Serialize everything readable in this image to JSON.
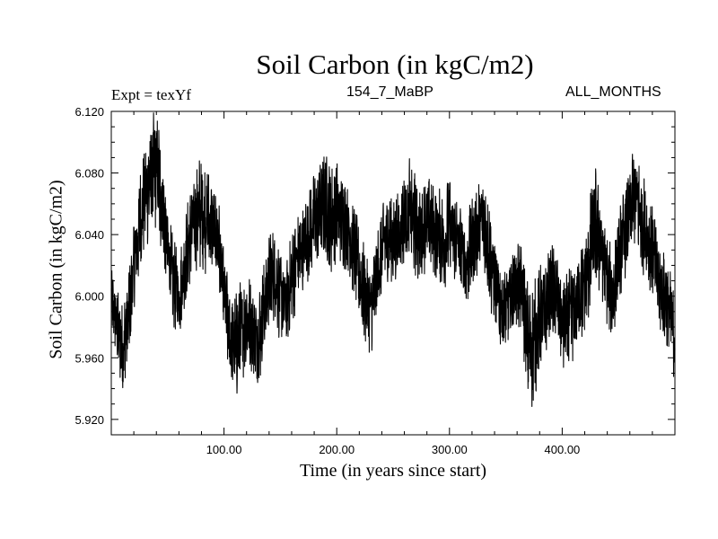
{
  "chart_data": {
    "type": "line",
    "title": "Soil Carbon (in kgC/m2)",
    "subtitle_left": "Expt = texYf",
    "subtitle_center": "154_7_MaBP",
    "subtitle_right": "ALL_MONTHS",
    "xlabel": "Time (in years since start)",
    "ylabel": "Soil Carbon (in kgC/m2)",
    "xlim": [
      0,
      500
    ],
    "ylim": [
      5.91,
      6.12
    ],
    "x_ticks": [
      100,
      200,
      300,
      400
    ],
    "x_tick_labels": [
      "100.00",
      "200.00",
      "300.00",
      "400.00"
    ],
    "y_ticks": [
      5.92,
      5.96,
      6.0,
      6.04,
      6.08,
      6.12
    ],
    "y_tick_labels": [
      "5.920",
      "5.960",
      "6.000",
      "6.040",
      "6.080",
      "6.120"
    ],
    "grid": false,
    "series": [
      {
        "color": "#000000",
        "x": [
          0,
          5,
          10,
          15,
          20,
          25,
          30,
          35,
          40,
          45,
          50,
          55,
          60,
          65,
          70,
          75,
          80,
          85,
          90,
          95,
          100,
          105,
          110,
          115,
          120,
          125,
          130,
          135,
          140,
          145,
          150,
          155,
          160,
          165,
          170,
          175,
          180,
          185,
          190,
          195,
          200,
          205,
          210,
          215,
          220,
          225,
          230,
          235,
          240,
          245,
          250,
          255,
          260,
          265,
          270,
          275,
          280,
          285,
          290,
          295,
          300,
          305,
          310,
          315,
          320,
          325,
          330,
          335,
          340,
          345,
          350,
          355,
          360,
          365,
          370,
          375,
          380,
          385,
          390,
          395,
          400,
          405,
          410,
          415,
          420,
          425,
          430,
          435,
          440,
          445,
          450,
          455,
          460,
          465,
          470,
          475,
          480,
          485,
          490,
          495,
          500
        ],
        "y": [
          6.0,
          5.98,
          5.965,
          5.985,
          6.02,
          6.045,
          6.065,
          6.075,
          6.085,
          6.06,
          6.03,
          6.01,
          6.0,
          6.02,
          6.04,
          6.05,
          6.055,
          6.05,
          6.045,
          6.035,
          6.0,
          5.975,
          5.965,
          5.975,
          5.985,
          5.98,
          5.97,
          5.99,
          6.01,
          6.015,
          6.0,
          5.995,
          6.01,
          6.025,
          6.03,
          6.04,
          6.05,
          6.055,
          6.06,
          6.05,
          6.055,
          6.05,
          6.045,
          6.03,
          6.015,
          6.0,
          5.99,
          6.01,
          6.03,
          6.04,
          6.035,
          6.04,
          6.05,
          6.055,
          6.045,
          6.04,
          6.05,
          6.045,
          6.04,
          6.035,
          6.045,
          6.04,
          6.03,
          6.02,
          6.035,
          6.045,
          6.05,
          6.03,
          6.01,
          5.995,
          5.99,
          6.0,
          6.01,
          6.0,
          5.965,
          5.97,
          5.985,
          5.99,
          6.005,
          6.0,
          5.98,
          5.98,
          5.99,
          6.0,
          6.005,
          6.03,
          6.045,
          6.03,
          6.01,
          6.0,
          6.025,
          6.04,
          6.055,
          6.065,
          6.05,
          6.04,
          6.03,
          6.01,
          6.0,
          5.99,
          5.975
        ],
        "amplitude": [
          0.02,
          0.025,
          0.03,
          0.03,
          0.03,
          0.035,
          0.035,
          0.04,
          0.045,
          0.035,
          0.03,
          0.03,
          0.03,
          0.03,
          0.03,
          0.035,
          0.04,
          0.035,
          0.03,
          0.03,
          0.03,
          0.035,
          0.035,
          0.035,
          0.03,
          0.03,
          0.035,
          0.03,
          0.03,
          0.03,
          0.03,
          0.03,
          0.03,
          0.03,
          0.03,
          0.03,
          0.03,
          0.03,
          0.035,
          0.035,
          0.035,
          0.03,
          0.03,
          0.03,
          0.03,
          0.03,
          0.03,
          0.03,
          0.03,
          0.03,
          0.03,
          0.03,
          0.03,
          0.035,
          0.035,
          0.03,
          0.03,
          0.03,
          0.03,
          0.03,
          0.035,
          0.03,
          0.03,
          0.03,
          0.03,
          0.03,
          0.035,
          0.035,
          0.03,
          0.03,
          0.03,
          0.03,
          0.03,
          0.035,
          0.04,
          0.04,
          0.035,
          0.03,
          0.03,
          0.03,
          0.03,
          0.035,
          0.03,
          0.03,
          0.035,
          0.04,
          0.04,
          0.035,
          0.03,
          0.03,
          0.03,
          0.03,
          0.03,
          0.035,
          0.035,
          0.03,
          0.03,
          0.03,
          0.03,
          0.03,
          0.03
        ]
      }
    ]
  }
}
